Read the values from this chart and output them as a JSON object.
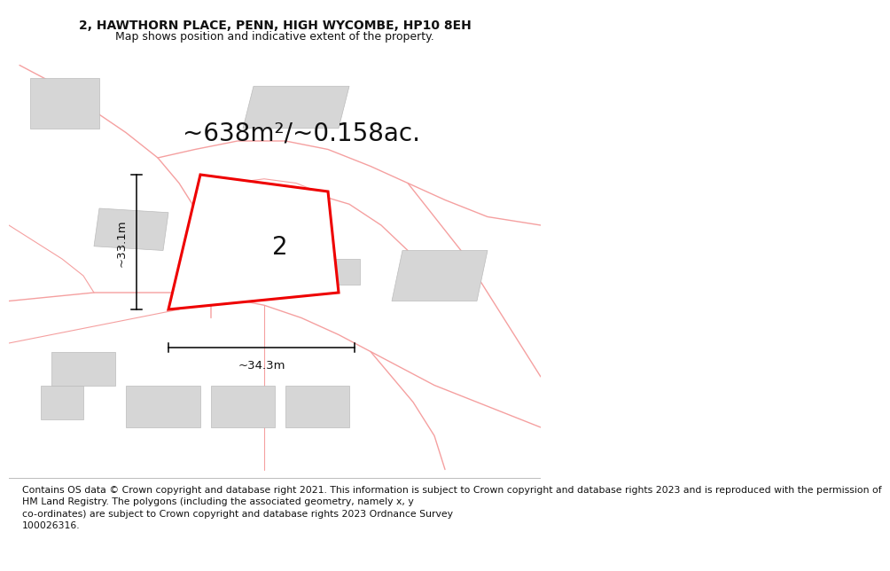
{
  "title_line1": "2, HAWTHORN PLACE, PENN, HIGH WYCOMBE, HP10 8EH",
  "title_line2": "Map shows position and indicative extent of the property.",
  "area_text": "~638m²/~0.158ac.",
  "property_number": "2",
  "dim_vertical": "~33.1m",
  "dim_horizontal": "~34.3m",
  "footer": "Contains OS data © Crown copyright and database right 2021. This information is subject to Crown copyright and database rights 2023 and is reproduced with the permission of\nHM Land Registry. The polygons (including the associated geometry, namely x, y\nco-ordinates) are subject to Crown copyright and database rights 2023 Ordnance Survey\n100026316.",
  "bg_color": "#ffffff",
  "map_bg": "#ffffff",
  "road_color": "#f5a0a0",
  "building_color": "#d6d6d6",
  "building_edge": "#bbbbbb",
  "property_color": "#ffffff",
  "property_edge": "#ee0000",
  "street_label_color": "#c8c8c8",
  "title_fontsize": 10,
  "subtitle_fontsize": 9,
  "area_fontsize": 20,
  "dim_fontsize": 9.5,
  "footer_fontsize": 7.8,
  "property_label_fontsize": 20,
  "street_label_fontsize": 8.5
}
